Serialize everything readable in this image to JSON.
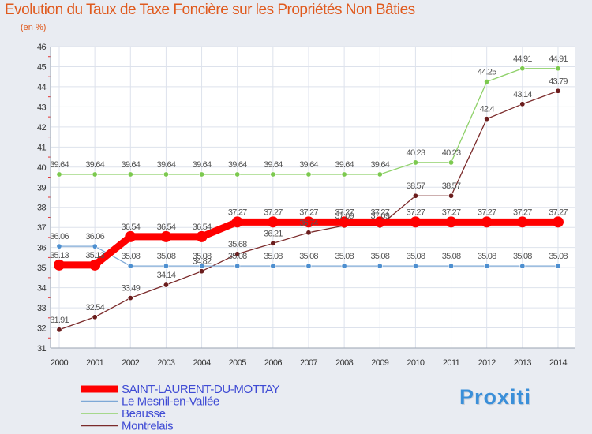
{
  "header": {
    "title": "Evolution du Taux de Taxe Foncière sur les Propriétés Non Bâties",
    "unit": "(en %)"
  },
  "logo": {
    "text": "Proxiti"
  },
  "chart_data": {
    "type": "line",
    "title": "Evolution du Taux de Taxe Foncière sur les Propriétés Non Bâties",
    "ylabel": "(en %)",
    "xlabel": "",
    "ylim": [
      31,
      46
    ],
    "yticks": [
      31,
      32,
      33,
      34,
      35,
      36,
      37,
      38,
      39,
      40,
      41,
      42,
      43,
      44,
      45,
      46
    ],
    "grid": true,
    "categories": [
      "2000",
      "2001",
      "2002",
      "2003",
      "2004",
      "2005",
      "2006",
      "2007",
      "2008",
      "2009",
      "2010",
      "2011",
      "2012",
      "2013",
      "2014"
    ],
    "series": [
      {
        "name": "Montrelais",
        "color": "#7b2b2b",
        "markerColor": "#6b1d1d",
        "values": [
          31.91,
          32.54,
          33.49,
          34.14,
          34.82,
          35.68,
          36.21,
          36.74,
          37.09,
          37.09,
          38.57,
          38.57,
          42.4,
          43.14,
          43.79
        ],
        "labels": [
          "31.91",
          "32.54",
          "33.49",
          "34.14",
          "34.82",
          "35.68",
          "36.21",
          "36.74",
          "37.09",
          "37.09",
          "38.57",
          "38.57",
          "42.4",
          "43.14",
          "43.79"
        ]
      },
      {
        "name": "Beausse",
        "color": "#8fd16a",
        "markerColor": "#7cc94f",
        "values": [
          39.64,
          39.64,
          39.64,
          39.64,
          39.64,
          39.64,
          39.64,
          39.64,
          39.64,
          39.64,
          40.23,
          40.23,
          44.25,
          44.91,
          44.91
        ],
        "labels": [
          "39.64",
          "39.64",
          "39.64",
          "39.64",
          "39.64",
          "39.64",
          "39.64",
          "39.64",
          "39.64",
          "39.64",
          "40.23",
          "40.23",
          "44.25",
          "44.91",
          "44.91"
        ]
      },
      {
        "name": "Le Mesnil-en-Vallée",
        "color": "#7ea8d6",
        "markerColor": "#4d8fd0",
        "values": [
          36.06,
          36.06,
          35.08,
          35.08,
          35.08,
          35.08,
          35.08,
          35.08,
          35.08,
          35.08,
          35.08,
          35.08,
          35.08,
          35.08,
          35.08
        ],
        "labels": [
          "36.06",
          "36.06",
          "35.08",
          "35.08",
          "35.08",
          "35.08",
          "35.08",
          "35.08",
          "35.08",
          "35.08",
          "35.08",
          "35.08",
          "35.08",
          "35.08",
          "35.08"
        ]
      },
      {
        "name": "SAINT-LAURENT-DU-MOTTAY",
        "color": "#ff0000",
        "markerColor": "#ff0000",
        "values": [
          35.13,
          35.13,
          36.54,
          36.54,
          36.54,
          37.27,
          37.27,
          37.27,
          37.27,
          37.27,
          37.27,
          37.27,
          37.27,
          37.27,
          37.27
        ],
        "labels": [
          "35.13",
          "35.13",
          "36.54",
          "36.54",
          "36.54",
          "37.27",
          "37.27",
          "37.27",
          "37.27",
          "37.27",
          "37.27",
          "37.27",
          "37.27",
          "37.27",
          "37.27"
        ]
      }
    ],
    "legend": [
      "SAINT-LAURENT-DU-MOTTAY",
      "Le Mesnil-en-Vallée",
      "Beausse",
      "Montrelais"
    ],
    "legend_position": "bottom-left"
  }
}
